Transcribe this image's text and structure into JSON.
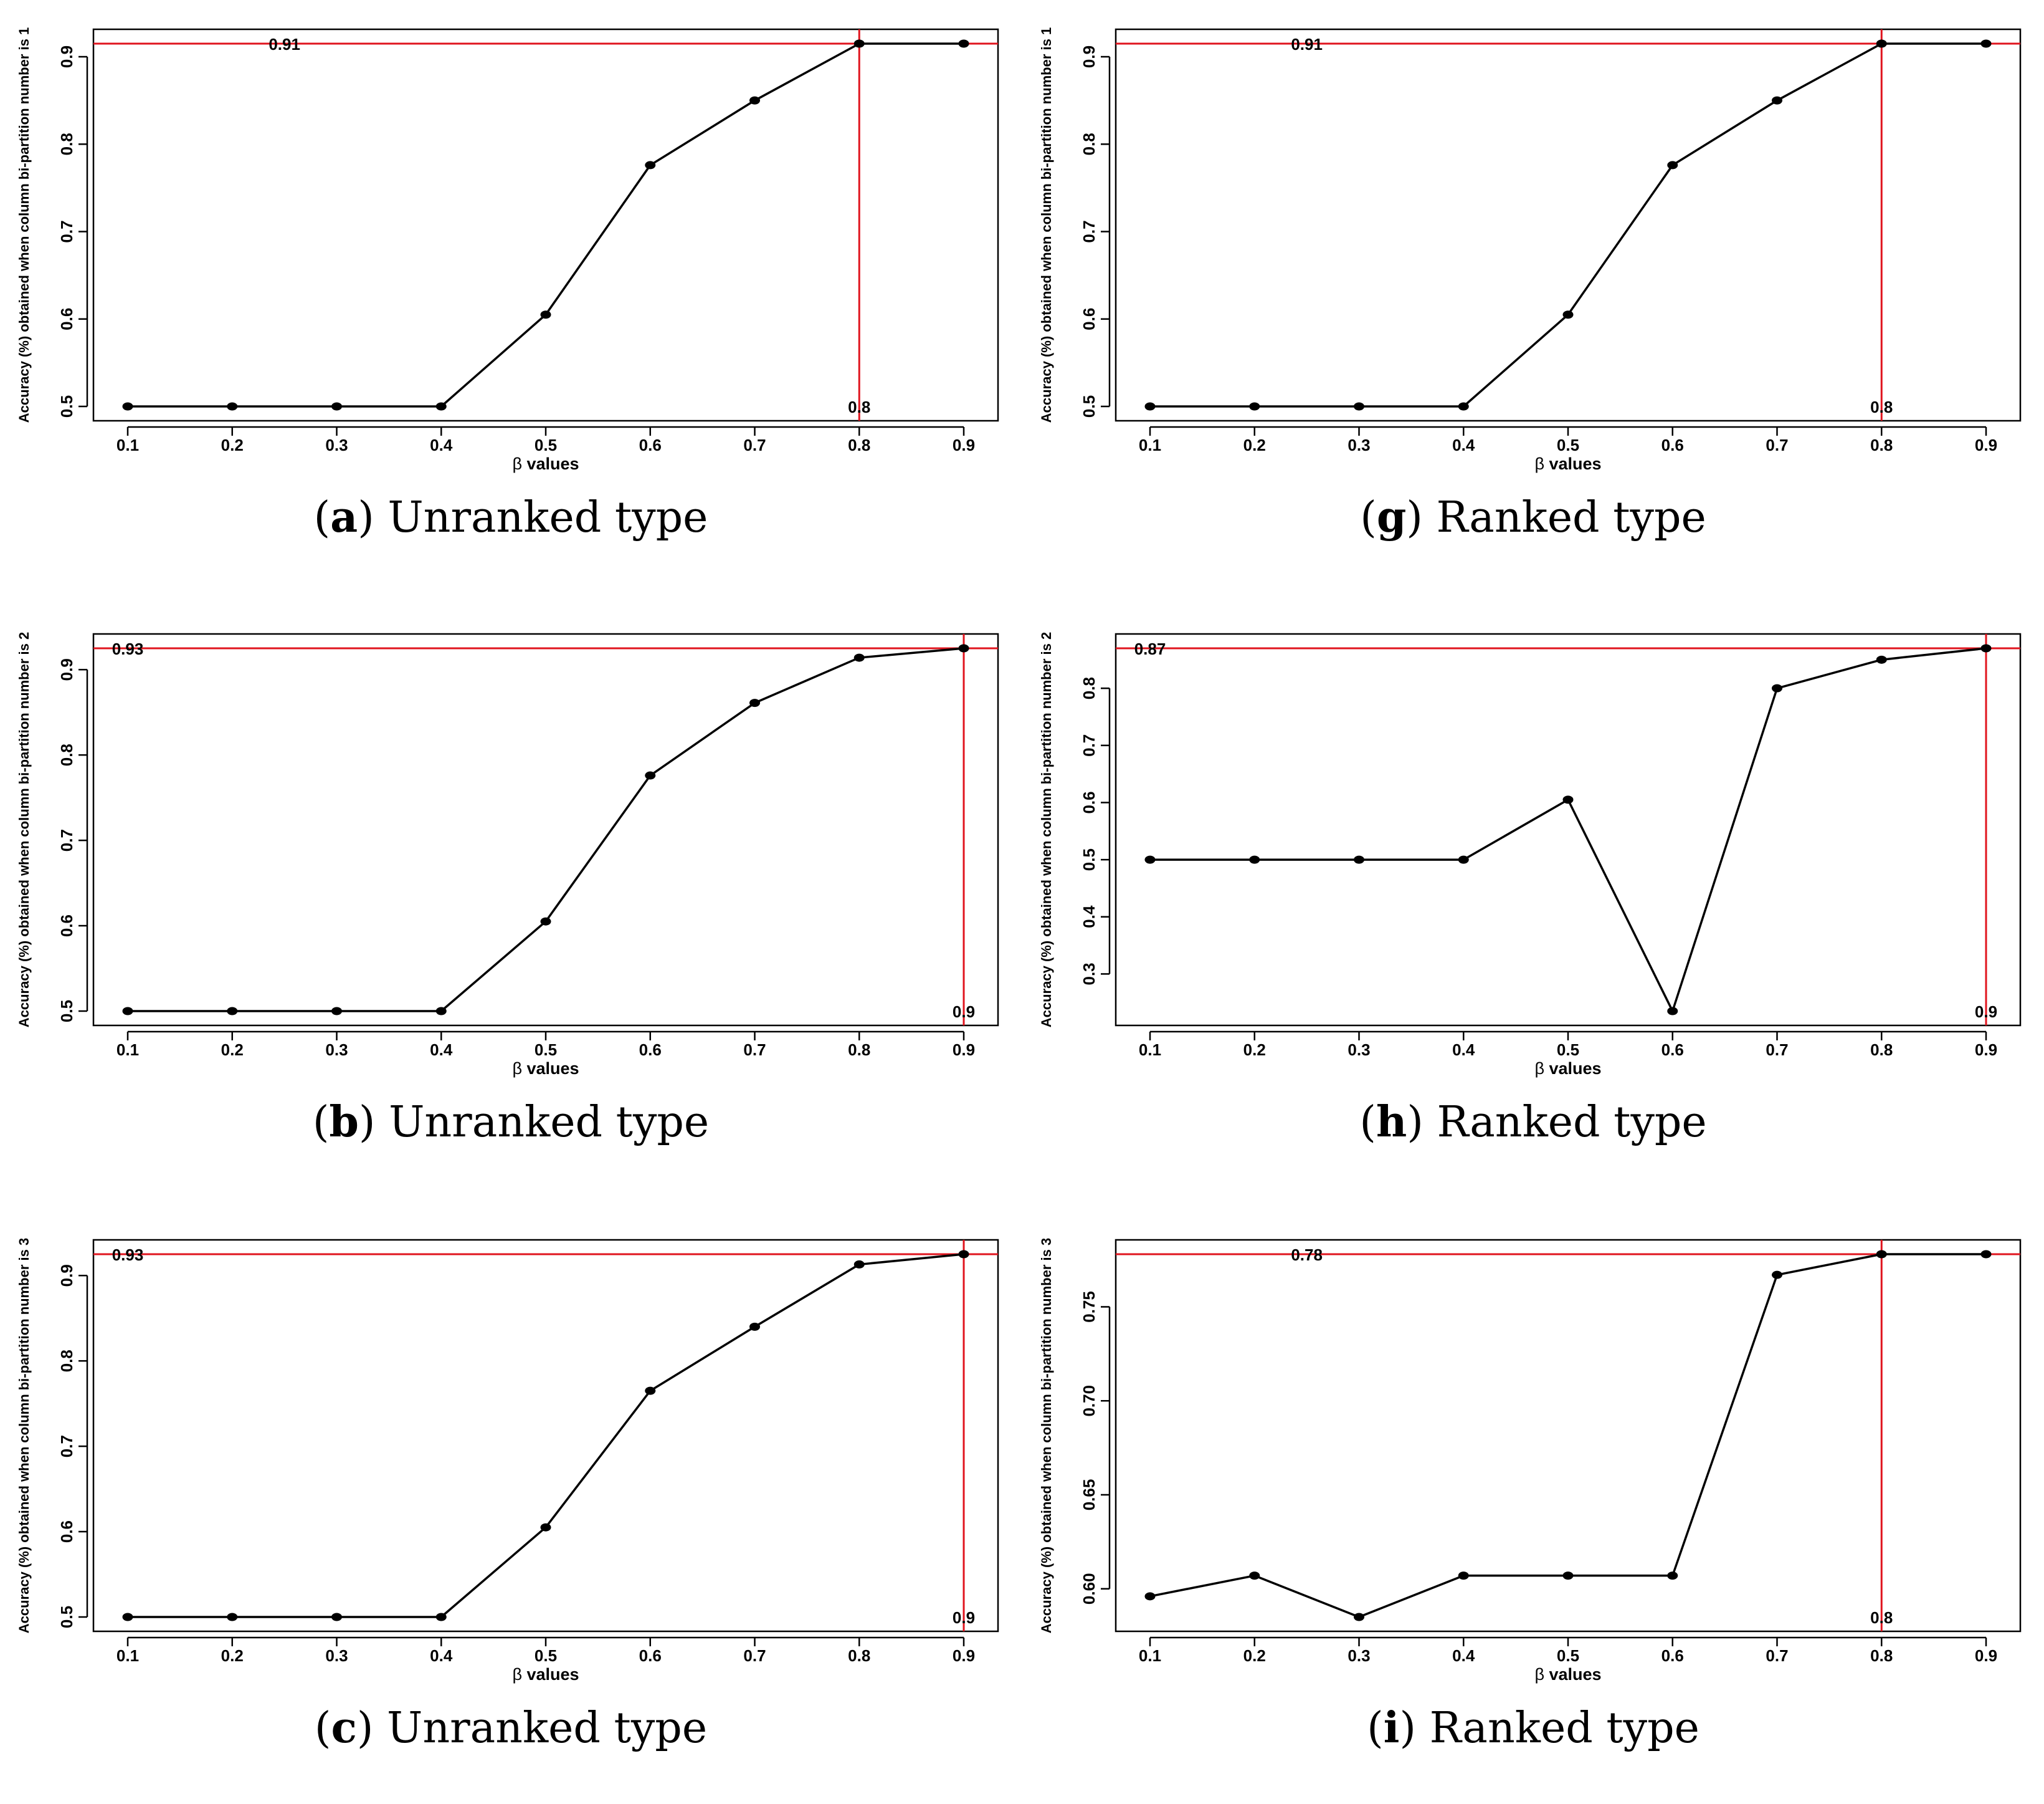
{
  "figure": {
    "panels_order": [
      "a",
      "g",
      "b",
      "h",
      "c",
      "i"
    ]
  },
  "chart_data": [
    {
      "id": "a",
      "type": "line",
      "caption_letter": "a",
      "caption_text": "Unranked type",
      "x": [
        0.1,
        0.2,
        0.3,
        0.4,
        0.5,
        0.6,
        0.7,
        0.8,
        0.9
      ],
      "x_tick_labels": [
        "0.1",
        "0.2",
        "0.3",
        "0.4",
        "0.5",
        "0.6",
        "0.7",
        "0.8",
        "0.9"
      ],
      "values": [
        0.5,
        0.5,
        0.5,
        0.5,
        0.605,
        0.776,
        0.85,
        0.915,
        0.915
      ],
      "xlabel": "values",
      "xlabel_symbol": "β",
      "ylabel": "Accuracy (%) obtained when column bi-partition number is 1",
      "ylim": [
        0.5,
        0.915
      ],
      "yticks": [
        0.5,
        0.6,
        0.7,
        0.8,
        0.9
      ],
      "ytick_labels": [
        "0.5",
        "0.6",
        "0.7",
        "0.8",
        "0.9"
      ],
      "hline": 0.915,
      "hline_label": "0.91",
      "hline_label_x": 0.25,
      "vline": 0.8,
      "vline_label": "0.8",
      "ref_color": "#e0141e"
    },
    {
      "id": "g",
      "type": "line",
      "caption_letter": "g",
      "caption_text": "Ranked type",
      "x": [
        0.1,
        0.2,
        0.3,
        0.4,
        0.5,
        0.6,
        0.7,
        0.8,
        0.9
      ],
      "x_tick_labels": [
        "0.1",
        "0.2",
        "0.3",
        "0.4",
        "0.5",
        "0.6",
        "0.7",
        "0.8",
        "0.9"
      ],
      "values": [
        0.5,
        0.5,
        0.5,
        0.5,
        0.605,
        0.776,
        0.85,
        0.915,
        0.915
      ],
      "xlabel": "values",
      "xlabel_symbol": "β",
      "ylabel": "Accuracy (%) obtained when column bi-partition number is 1",
      "ylim": [
        0.5,
        0.915
      ],
      "yticks": [
        0.5,
        0.6,
        0.7,
        0.8,
        0.9
      ],
      "ytick_labels": [
        "0.5",
        "0.6",
        "0.7",
        "0.8",
        "0.9"
      ],
      "hline": 0.915,
      "hline_label": "0.91",
      "hline_label_x": 0.25,
      "vline": 0.8,
      "vline_label": "0.8",
      "ref_color": "#e0141e"
    },
    {
      "id": "b",
      "type": "line",
      "caption_letter": "b",
      "caption_text": "Unranked type",
      "x": [
        0.1,
        0.2,
        0.3,
        0.4,
        0.5,
        0.6,
        0.7,
        0.8,
        0.9
      ],
      "x_tick_labels": [
        "0.1",
        "0.2",
        "0.3",
        "0.4",
        "0.5",
        "0.6",
        "0.7",
        "0.8",
        "0.9"
      ],
      "values": [
        0.5,
        0.5,
        0.5,
        0.5,
        0.605,
        0.776,
        0.861,
        0.914,
        0.925
      ],
      "xlabel": "values",
      "xlabel_symbol": "β",
      "ylabel": "Accuracy (%) obtained when column bi-partition number is 2",
      "ylim": [
        0.5,
        0.925
      ],
      "yticks": [
        0.5,
        0.6,
        0.7,
        0.8,
        0.9
      ],
      "ytick_labels": [
        "0.5",
        "0.6",
        "0.7",
        "0.8",
        "0.9"
      ],
      "hline": 0.925,
      "hline_label": "0.93",
      "hline_label_x": 0.1,
      "vline": 0.9,
      "vline_label": "0.9",
      "ref_color": "#e0141e"
    },
    {
      "id": "h",
      "type": "line",
      "caption_letter": "h",
      "caption_text": "Ranked type",
      "x": [
        0.1,
        0.2,
        0.3,
        0.4,
        0.5,
        0.6,
        0.7,
        0.8,
        0.9
      ],
      "x_tick_labels": [
        "0.1",
        "0.2",
        "0.3",
        "0.4",
        "0.5",
        "0.6",
        "0.7",
        "0.8",
        "0.9"
      ],
      "values": [
        0.5,
        0.5,
        0.5,
        0.5,
        0.605,
        0.235,
        0.8,
        0.85,
        0.87
      ],
      "xlabel": "values",
      "xlabel_symbol": "β",
      "ylabel": "Accuracy (%) obtained when column bi-partition number is 2",
      "ylim": [
        0.235,
        0.87
      ],
      "yticks": [
        0.3,
        0.4,
        0.5,
        0.6,
        0.7,
        0.8
      ],
      "ytick_labels": [
        "0.3",
        "0.4",
        "0.5",
        "0.6",
        "0.7",
        "0.8"
      ],
      "hline": 0.87,
      "hline_label": "0.87",
      "hline_label_x": 0.1,
      "vline": 0.9,
      "vline_label": "0.9",
      "ref_color": "#e0141e"
    },
    {
      "id": "c",
      "type": "line",
      "caption_letter": "c",
      "caption_text": "Unranked type",
      "x": [
        0.1,
        0.2,
        0.3,
        0.4,
        0.5,
        0.6,
        0.7,
        0.8,
        0.9
      ],
      "x_tick_labels": [
        "0.1",
        "0.2",
        "0.3",
        "0.4",
        "0.5",
        "0.6",
        "0.7",
        "0.8",
        "0.9"
      ],
      "values": [
        0.5,
        0.5,
        0.5,
        0.5,
        0.605,
        0.765,
        0.84,
        0.913,
        0.925
      ],
      "xlabel": "values",
      "xlabel_symbol": "β",
      "ylabel": "Accuracy (%) obtained when column bi-partition number is 3",
      "ylim": [
        0.5,
        0.925
      ],
      "yticks": [
        0.5,
        0.6,
        0.7,
        0.8,
        0.9
      ],
      "ytick_labels": [
        "0.5",
        "0.6",
        "0.7",
        "0.8",
        "0.9"
      ],
      "hline": 0.925,
      "hline_label": "0.93",
      "hline_label_x": 0.1,
      "vline": 0.9,
      "vline_label": "0.9",
      "ref_color": "#e0141e"
    },
    {
      "id": "i",
      "type": "line",
      "caption_letter": "i",
      "caption_text": "Ranked type",
      "x": [
        0.1,
        0.2,
        0.3,
        0.4,
        0.5,
        0.6,
        0.7,
        0.8,
        0.9
      ],
      "x_tick_labels": [
        "0.1",
        "0.2",
        "0.3",
        "0.4",
        "0.5",
        "0.6",
        "0.7",
        "0.8",
        "0.9"
      ],
      "values": [
        0.596,
        0.607,
        0.585,
        0.607,
        0.607,
        0.607,
        0.767,
        0.778,
        0.778
      ],
      "xlabel": "values",
      "xlabel_symbol": "β",
      "ylabel": "Accuracy (%) obtained when column bi-partition number is 3",
      "ylim": [
        0.585,
        0.778
      ],
      "yticks": [
        0.6,
        0.65,
        0.7,
        0.75
      ],
      "ytick_labels": [
        "0.60",
        "0.65",
        "0.70",
        "0.75"
      ],
      "hline": 0.778,
      "hline_label": "0.78",
      "hline_label_x": 0.25,
      "vline": 0.8,
      "vline_label": "0.8",
      "ref_color": "#e0141e"
    }
  ]
}
